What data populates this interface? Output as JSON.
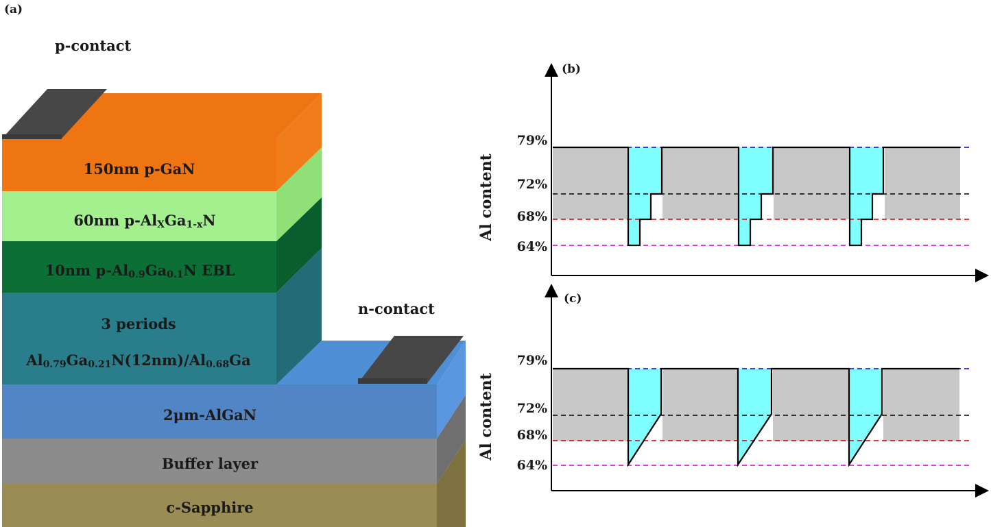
{
  "figure": {
    "panel_a": "(a)",
    "panel_b": "(b)",
    "panel_c": "(c)"
  },
  "device": {
    "p_contact": "p-contact",
    "n_contact": "n-contact",
    "layers": [
      {
        "label": "150nm p-GaN",
        "color": "#ee7511"
      },
      {
        "label_main": "60nm p-Al",
        "label_sub1": "X",
        "label_mid": "Ga",
        "label_sub2": "1-x",
        "label_end": "N",
        "color": "#a4f08e"
      },
      {
        "label_main": "10nm p-Al",
        "label_sub1": "0.9",
        "label_mid": "Ga",
        "label_sub2": "0.1",
        "label_end": "N EBL",
        "color": "#0b6f36"
      },
      {
        "label_line1": "3 periods",
        "label_line2_main": "Al",
        "label_line2_sub1": "0.79",
        "label_line2_mid": "Ga",
        "label_line2_sub2": "0.21",
        "label_line2_end": "N(12nm)/Al",
        "label_line2_sub3": "0.68",
        "label_line2_tail": "Ga",
        "color": "#2a7d8a"
      },
      {
        "label": "2μm-AlGaN",
        "color": "#5285c6"
      },
      {
        "label": "Buffer layer",
        "color": "#8c8c8c"
      },
      {
        "label": "c-Sapphire",
        "color": "#998c55"
      }
    ]
  },
  "profile": {
    "y_axis_label": "Al content",
    "ticks": [
      "79%",
      "72%",
      "68%",
      "64%"
    ],
    "tick_values": [
      79,
      72,
      68,
      64
    ],
    "line_colors": {
      "79": "#0000cc",
      "72": "#000000",
      "68": "#cc0000",
      "64": "#cc00cc"
    },
    "fill_barrier": "#c8c8c8",
    "fill_well": "#7fffff"
  },
  "chart_data": [
    {
      "type": "diagram",
      "panel": "(b)",
      "ylabel": "Al content",
      "levels": [
        79,
        72,
        68,
        64
      ],
      "well_profile": "stepped",
      "periods": 3
    },
    {
      "type": "diagram",
      "panel": "(c)",
      "ylabel": "Al content",
      "levels": [
        79,
        72,
        68,
        64
      ],
      "well_profile": "linear-graded",
      "periods": 3
    }
  ]
}
